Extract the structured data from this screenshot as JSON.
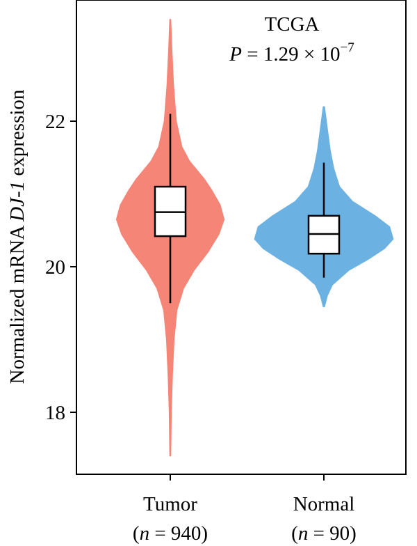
{
  "chart_data": {
    "type": "violin",
    "ylabel_prefix": "Normalized mRNA ",
    "ylabel_gene": "DJ-1",
    "ylabel_suffix": " expression",
    "ylim": [
      17.0,
      23.6
    ],
    "yticks": [
      18,
      20,
      22
    ],
    "ytick_labels": [
      "18",
      "20",
      "22"
    ],
    "annotation": {
      "title": "TCGA",
      "p_label": "P",
      "p_value": " = 1.29 × 10",
      "p_exponent": "−7"
    },
    "groups": [
      {
        "name": "Tumor",
        "n_label": "n",
        "n_value": " = 940",
        "color": "#f48577",
        "min": 17.4,
        "max": 23.4,
        "box": {
          "whisker_low": 19.5,
          "q1": 20.42,
          "median": 20.75,
          "q3": 21.1,
          "whisker_high": 22.1
        },
        "density": [
          [
            17.4,
            0.01
          ],
          [
            18.0,
            0.02
          ],
          [
            18.5,
            0.04
          ],
          [
            19.0,
            0.07
          ],
          [
            19.4,
            0.12
          ],
          [
            19.7,
            0.24
          ],
          [
            19.95,
            0.43
          ],
          [
            20.2,
            0.68
          ],
          [
            20.45,
            0.88
          ],
          [
            20.65,
            0.97
          ],
          [
            20.85,
            0.9
          ],
          [
            21.05,
            0.75
          ],
          [
            21.2,
            0.62
          ],
          [
            21.45,
            0.35
          ],
          [
            21.65,
            0.21
          ],
          [
            22.0,
            0.11
          ],
          [
            22.5,
            0.06
          ],
          [
            23.0,
            0.03
          ],
          [
            23.4,
            0.01
          ]
        ]
      },
      {
        "name": "Normal",
        "n_label": "n",
        "n_value": " = 90",
        "color": "#6bb2e2",
        "min": 19.45,
        "max": 22.2,
        "box": {
          "whisker_low": 19.85,
          "q1": 20.18,
          "median": 20.45,
          "q3": 20.7,
          "whisker_high": 21.43
        },
        "density": [
          [
            19.45,
            0.01
          ],
          [
            19.6,
            0.05
          ],
          [
            19.75,
            0.12
          ],
          [
            19.95,
            0.35
          ],
          [
            20.1,
            0.62
          ],
          [
            20.25,
            0.85
          ],
          [
            20.38,
            0.97
          ],
          [
            20.55,
            0.92
          ],
          [
            20.7,
            0.72
          ],
          [
            20.9,
            0.4
          ],
          [
            21.1,
            0.22
          ],
          [
            21.35,
            0.14
          ],
          [
            21.6,
            0.09
          ],
          [
            21.9,
            0.05
          ],
          [
            22.2,
            0.01
          ]
        ]
      }
    ]
  }
}
